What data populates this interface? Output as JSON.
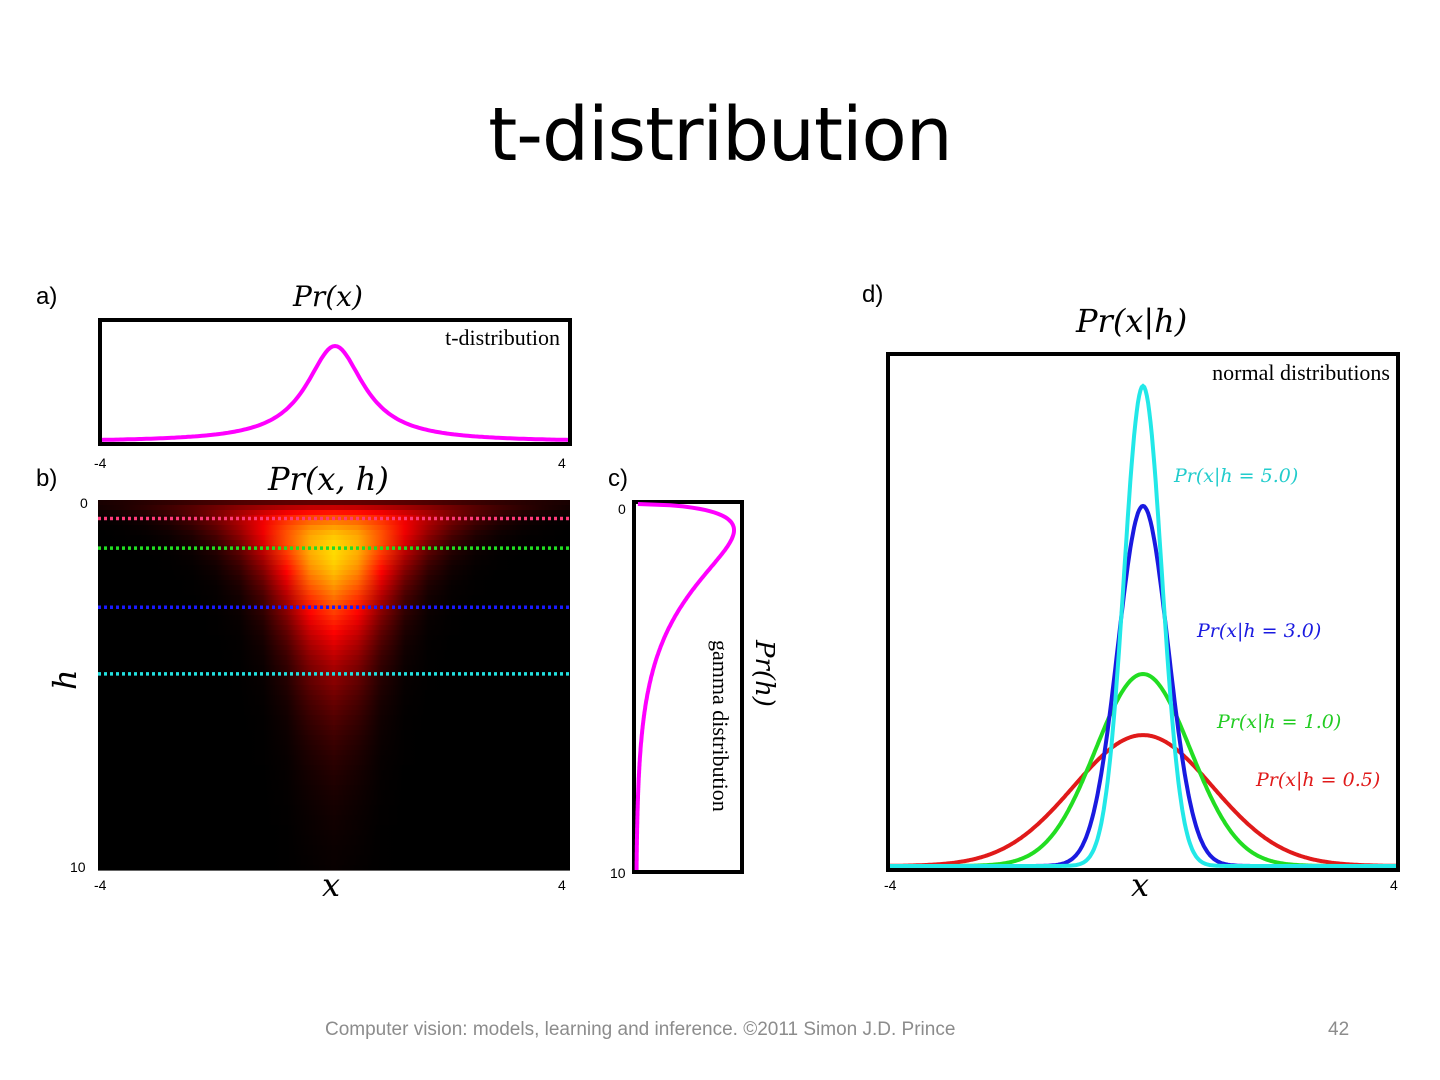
{
  "slide": {
    "title": "t-distribution",
    "footer": "Computer vision: models, learning and inference.  ©2011 Simon J.D. Prince",
    "page_number": "42"
  },
  "chart_data": [
    {
      "panel": "a)",
      "type": "line",
      "title": "Pr(x)",
      "legend": "t-distribution",
      "x_ticks": [
        "-4",
        "4"
      ],
      "xlim": [
        -4,
        4
      ],
      "series": [
        {
          "name": "t-distribution",
          "color": "#ff00ff",
          "dof": 1.0,
          "scale": 0.6
        }
      ]
    },
    {
      "panel": "b)",
      "type": "heatmap",
      "title": "Pr(x, h)",
      "xlabel": "x",
      "ylabel": "h",
      "x_ticks": [
        "-4",
        "4"
      ],
      "y_ticks": [
        "0",
        "10"
      ],
      "xlim": [
        -4,
        4
      ],
      "ylim": [
        0,
        10
      ],
      "colormap": "hot",
      "slices": [
        {
          "h": 0.5,
          "color": "#ff3a7a"
        },
        {
          "h": 1.3,
          "color": "#22dd22"
        },
        {
          "h": 2.9,
          "color": "#1a1aff"
        },
        {
          "h": 4.7,
          "color": "#22e0e0"
        }
      ]
    },
    {
      "panel": "c)",
      "type": "line",
      "title": "Pr(h)",
      "legend": "gamma distribution",
      "y_ticks": [
        "0",
        "10"
      ],
      "ylim": [
        0,
        10
      ],
      "series": [
        {
          "name": "gamma",
          "color": "#ff00ff",
          "shape": 1.5,
          "rate": 0.7
        }
      ]
    },
    {
      "panel": "d)",
      "type": "line",
      "title": "Pr(x|h)",
      "legend": "normal distributions",
      "xlabel": "x",
      "x_ticks": [
        "-4",
        "4"
      ],
      "xlim": [
        -4,
        4
      ],
      "series": [
        {
          "name": "Pr(x|h = 5.0)",
          "h": 5.0,
          "color": "#22e8e8",
          "sigma": 0.3
        },
        {
          "name": "Pr(x|h = 3.0)",
          "h": 3.0,
          "color": "#1a1ae0",
          "sigma": 0.4
        },
        {
          "name": "Pr(x|h = 1.0)",
          "h": 1.0,
          "color": "#22dd22",
          "sigma": 0.75
        },
        {
          "name": "Pr(x|h = 0.5)",
          "h": 0.5,
          "color": "#e01a1a",
          "sigma": 1.1
        }
      ]
    }
  ]
}
